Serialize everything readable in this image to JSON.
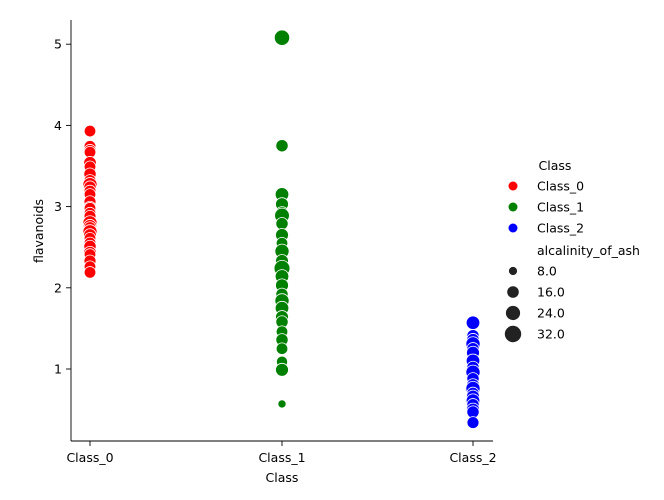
{
  "chart_data": {
    "type": "scatter",
    "title": "",
    "xlabel": "Class",
    "ylabel": "flavanoids",
    "categories": [
      "Class_0",
      "Class_1",
      "Class_2"
    ],
    "ylim": [
      0.22,
      5.32
    ],
    "yticks": [
      "1",
      "2",
      "3",
      "4",
      "5"
    ],
    "ytick_values": [
      1,
      2,
      3,
      4,
      5
    ],
    "grid": false,
    "legend": {
      "placement": "right",
      "hue_title": "Class",
      "size_title": "alcalinity_of_ash",
      "hue_entries": [
        "Class_0",
        "Class_1",
        "Class_2"
      ],
      "size_entries": [
        "8.0",
        "16.0",
        "24.0",
        "32.0"
      ],
      "size_values": [
        8,
        16,
        24,
        32
      ]
    },
    "colors": {
      "Class_0": "#ff0000",
      "Class_1": "#008000",
      "Class_2": "#0000ff"
    },
    "series": [
      {
        "name": "Class_0",
        "points": [
          {
            "y": 3.93,
            "s": 16
          },
          {
            "y": 3.74,
            "s": 17
          },
          {
            "y": 3.69,
            "s": 18
          },
          {
            "y": 3.67,
            "s": 16
          },
          {
            "y": 3.54,
            "s": 19
          },
          {
            "y": 3.49,
            "s": 16
          },
          {
            "y": 3.4,
            "s": 18
          },
          {
            "y": 3.32,
            "s": 17
          },
          {
            "y": 3.27,
            "s": 24
          },
          {
            "y": 3.24,
            "s": 18
          },
          {
            "y": 3.19,
            "s": 17
          },
          {
            "y": 3.15,
            "s": 16
          },
          {
            "y": 3.06,
            "s": 17
          },
          {
            "y": 2.99,
            "s": 18
          },
          {
            "y": 2.98,
            "s": 16
          },
          {
            "y": 2.92,
            "s": 16
          },
          {
            "y": 2.88,
            "s": 17
          },
          {
            "y": 2.8,
            "s": 24
          },
          {
            "y": 2.76,
            "s": 21
          },
          {
            "y": 2.74,
            "s": 17
          },
          {
            "y": 2.69,
            "s": 24
          },
          {
            "y": 2.65,
            "s": 19
          },
          {
            "y": 2.61,
            "s": 16
          },
          {
            "y": 2.55,
            "s": 17
          },
          {
            "y": 2.51,
            "s": 18
          },
          {
            "y": 2.43,
            "s": 20
          },
          {
            "y": 2.41,
            "s": 16
          },
          {
            "y": 2.33,
            "s": 17
          },
          {
            "y": 2.26,
            "s": 16
          },
          {
            "y": 2.19,
            "s": 16
          }
        ]
      },
      {
        "name": "Class_1",
        "points": [
          {
            "y": 5.08,
            "s": 28
          },
          {
            "y": 3.75,
            "s": 18
          },
          {
            "y": 3.15,
            "s": 22
          },
          {
            "y": 3.03,
            "s": 20
          },
          {
            "y": 2.92,
            "s": 20
          },
          {
            "y": 2.89,
            "s": 26
          },
          {
            "y": 2.79,
            "s": 18
          },
          {
            "y": 2.65,
            "s": 20
          },
          {
            "y": 2.55,
            "s": 16
          },
          {
            "y": 2.45,
            "s": 24
          },
          {
            "y": 2.33,
            "s": 20
          },
          {
            "y": 2.24,
            "s": 30
          },
          {
            "y": 2.14,
            "s": 22
          },
          {
            "y": 2.03,
            "s": 20
          },
          {
            "y": 1.92,
            "s": 18
          },
          {
            "y": 1.84,
            "s": 24
          },
          {
            "y": 1.75,
            "s": 22
          },
          {
            "y": 1.64,
            "s": 20
          },
          {
            "y": 1.58,
            "s": 18
          },
          {
            "y": 1.46,
            "s": 16
          },
          {
            "y": 1.36,
            "s": 18
          },
          {
            "y": 1.25,
            "s": 16
          },
          {
            "y": 1.09,
            "s": 15
          },
          {
            "y": 0.99,
            "s": 20
          },
          {
            "y": 0.57,
            "s": 8
          }
        ]
      },
      {
        "name": "Class_2",
        "points": [
          {
            "y": 1.57,
            "s": 22
          },
          {
            "y": 1.41,
            "s": 18
          },
          {
            "y": 1.36,
            "s": 19
          },
          {
            "y": 1.31,
            "s": 24
          },
          {
            "y": 1.25,
            "s": 18
          },
          {
            "y": 1.2,
            "s": 20
          },
          {
            "y": 1.1,
            "s": 22
          },
          {
            "y": 1.02,
            "s": 18
          },
          {
            "y": 0.96,
            "s": 24
          },
          {
            "y": 0.88,
            "s": 18
          },
          {
            "y": 0.8,
            "s": 20
          },
          {
            "y": 0.76,
            "s": 24
          },
          {
            "y": 0.7,
            "s": 18
          },
          {
            "y": 0.66,
            "s": 20
          },
          {
            "y": 0.61,
            "s": 22
          },
          {
            "y": 0.56,
            "s": 18
          },
          {
            "y": 0.5,
            "s": 20
          },
          {
            "y": 0.47,
            "s": 18
          },
          {
            "y": 0.34,
            "s": 17
          }
        ]
      }
    ]
  }
}
